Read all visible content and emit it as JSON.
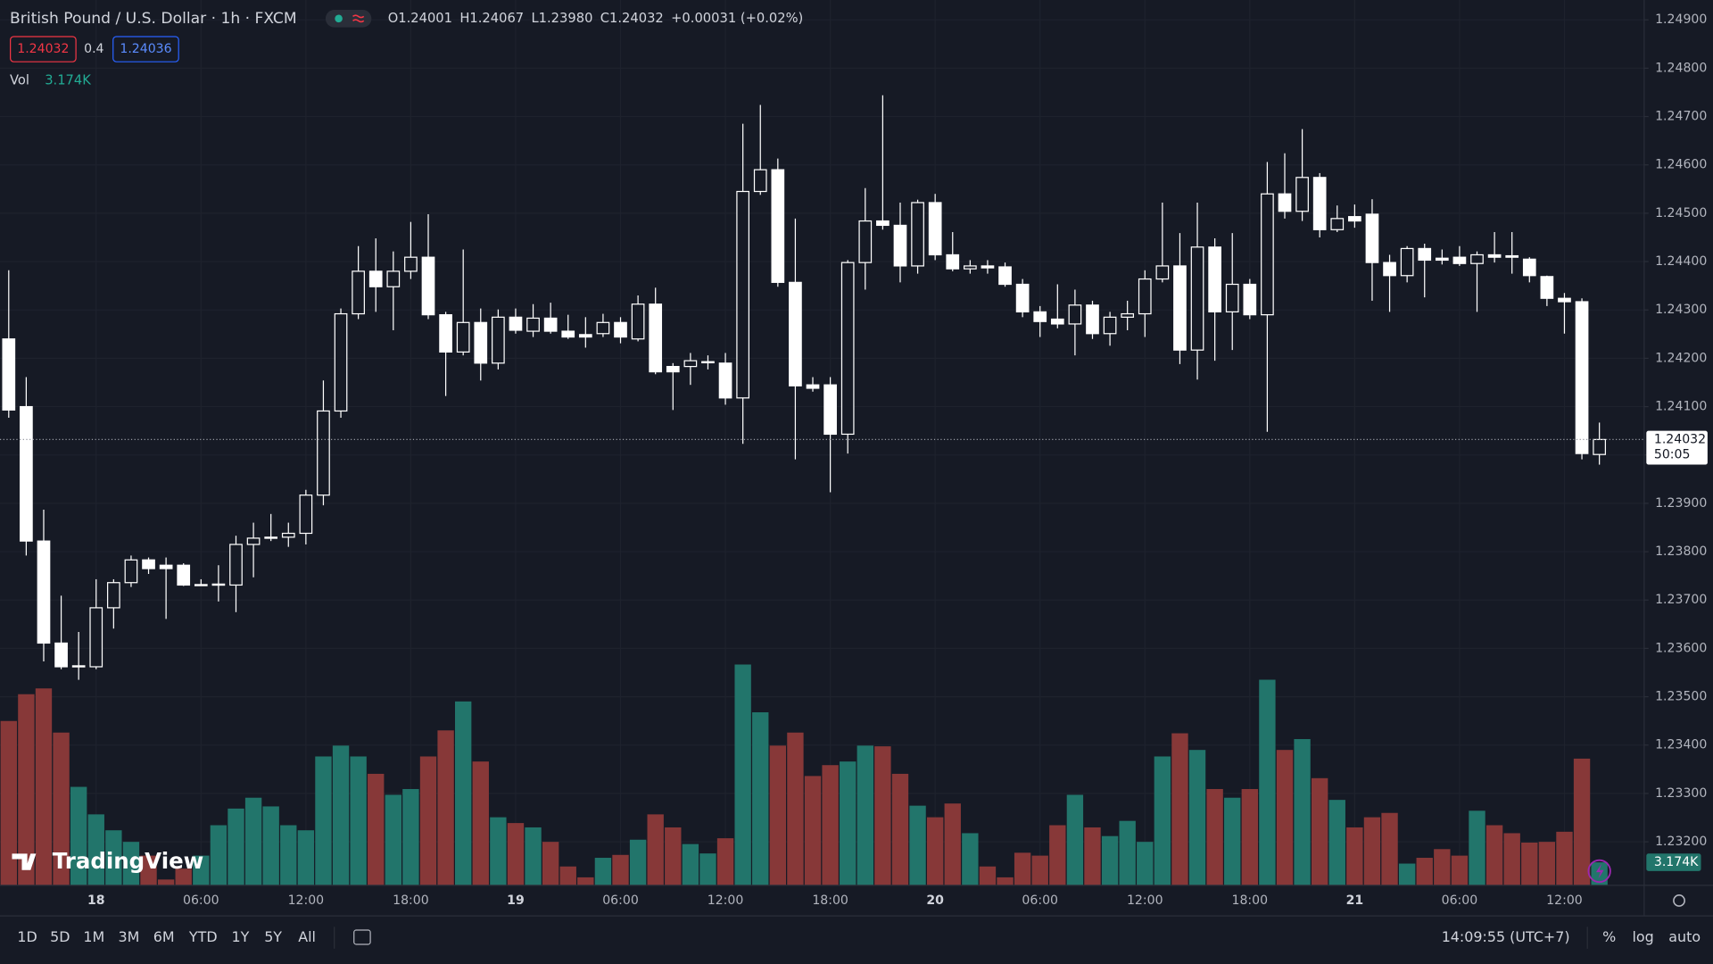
{
  "header": {
    "title": "British Pound / U.S. Dollar · 1h · FXCM",
    "ohlc": [
      {
        "key": "O",
        "value": "1.24001"
      },
      {
        "key": "H",
        "value": "1.24067"
      },
      {
        "key": "L",
        "value": "1.23980"
      },
      {
        "key": "C",
        "value": "1.24032"
      }
    ],
    "change": "+0.00031 (+0.02%)",
    "sell_price": "1.24032",
    "spread": "0.4",
    "buy_price": "1.24036",
    "volume_title": "Vol",
    "volume_value": "3.174K"
  },
  "chart_data": {
    "type": "candlestick",
    "categories": [
      null,
      null,
      null,
      null,
      null,
      "18",
      null,
      null,
      null,
      null,
      null,
      "06:00",
      null,
      null,
      null,
      null,
      null,
      "12:00",
      null,
      null,
      null,
      null,
      null,
      "18:00",
      null,
      null,
      null,
      null,
      null,
      "19",
      null,
      null,
      null,
      null,
      null,
      "06:00",
      null,
      null,
      null,
      null,
      null,
      "12:00",
      null,
      null,
      null,
      null,
      null,
      "18:00",
      null,
      null,
      null,
      null,
      null,
      "20",
      null,
      null,
      null,
      null,
      null,
      "06:00",
      null,
      null,
      null,
      null,
      null,
      "12:00",
      null,
      null,
      null,
      null,
      null,
      "18:00",
      null,
      null,
      null,
      null,
      null,
      "21",
      null,
      null,
      null,
      null,
      null,
      "06:00",
      null,
      null,
      null,
      null,
      null,
      "12:00",
      null,
      null
    ],
    "open": [
      1.2424,
      1.241,
      1.23822,
      1.23611,
      1.23562,
      1.23562,
      1.23684,
      1.23736,
      1.23783,
      1.23772,
      1.23772,
      1.23731,
      1.23731,
      1.23731,
      1.23815,
      1.23828,
      1.2383,
      1.23838,
      1.23917,
      1.24091,
      1.24292,
      1.2438,
      1.24348,
      1.2438,
      1.24409,
      1.2429,
      1.24213,
      1.24274,
      1.2419,
      1.24285,
      1.24256,
      1.24283,
      1.24256,
      1.24249,
      1.24251,
      1.24274,
      1.2424,
      1.24312,
      1.24183,
      1.24183,
      1.24192,
      1.2419,
      1.24118,
      1.24545,
      1.2459,
      1.24357,
      1.24145,
      1.24145,
      1.24043,
      1.24398,
      1.24484,
      1.24475,
      1.24391,
      1.24522,
      1.24414,
      1.24385,
      1.24391,
      1.24389,
      1.24353,
      1.24296,
      1.24281,
      1.24271,
      1.2431,
      1.24251,
      1.24285,
      1.24292,
      1.24364,
      1.24391,
      1.24217,
      1.2443,
      1.24296,
      1.24353,
      1.2429,
      1.2454,
      1.24504,
      1.24574,
      1.24466,
      1.24493,
      1.24498,
      1.24398,
      1.24371,
      1.24427,
      1.24407,
      1.24409,
      1.24396,
      1.24414,
      1.24412,
      1.24405,
      1.24369,
      1.24324,
      1.24317,
      1.24001
    ],
    "high": [
      1.24382,
      1.24161,
      1.23887,
      1.23709,
      1.23634,
      1.23743,
      1.23743,
      1.23792,
      1.23788,
      1.23788,
      1.23776,
      1.23743,
      1.23772,
      1.23833,
      1.2386,
      1.23878,
      1.2386,
      1.23928,
      1.24154,
      1.24303,
      1.24432,
      1.24448,
      1.24421,
      1.24482,
      1.24498,
      1.24296,
      1.24425,
      1.24303,
      1.24301,
      1.24303,
      1.24312,
      1.24315,
      1.2429,
      1.24285,
      1.24292,
      1.24285,
      1.2433,
      1.24346,
      1.2419,
      1.24211,
      1.24206,
      1.24211,
      1.24685,
      1.24724,
      1.24613,
      1.24489,
      1.24161,
      1.24161,
      1.24403,
      1.24552,
      1.24744,
      1.24522,
      1.24528,
      1.2454,
      1.24461,
      1.24403,
      1.24403,
      1.24398,
      1.24364,
      1.24308,
      1.24353,
      1.24342,
      1.24319,
      1.24296,
      1.24319,
      1.24382,
      1.24522,
      1.24459,
      1.24522,
      1.24448,
      1.24459,
      1.24364,
      1.24606,
      1.24624,
      1.24674,
      1.24583,
      1.24516,
      1.24518,
      1.24529,
      1.24414,
      1.24432,
      1.24437,
      1.24425,
      1.24432,
      1.24421,
      1.24461,
      1.24461,
      1.24409,
      1.24371,
      1.24335,
      1.24324,
      1.24067
    ],
    "low": [
      1.24077,
      1.23792,
      1.23573,
      1.23557,
      1.23535,
      1.23557,
      1.23641,
      1.23727,
      1.23754,
      1.23661,
      1.23729,
      1.23729,
      1.23697,
      1.23675,
      1.23747,
      1.23822,
      1.2381,
      1.23815,
      1.23896,
      1.24077,
      1.24281,
      1.24296,
      1.24258,
      1.24364,
      1.24281,
      1.24122,
      1.24206,
      1.24154,
      1.24177,
      1.24251,
      1.24244,
      1.24251,
      1.2424,
      1.24222,
      1.24244,
      1.24231,
      1.24235,
      1.24167,
      1.24093,
      1.24145,
      1.24177,
      1.24104,
      1.24023,
      1.24538,
      1.24348,
      1.23991,
      1.24131,
      1.23923,
      1.24003,
      1.24342,
      1.24466,
      1.24357,
      1.24375,
      1.24403,
      1.2438,
      1.24375,
      1.24375,
      1.24348,
      1.24285,
      1.24244,
      1.24262,
      1.24206,
      1.2424,
      1.24226,
      1.24258,
      1.24244,
      1.24357,
      1.24188,
      1.24156,
      1.24195,
      1.24217,
      1.24281,
      1.24048,
      1.24489,
      1.24484,
      1.2445,
      1.24461,
      1.2447,
      1.24319,
      1.24296,
      1.24357,
      1.24326,
      1.24394,
      1.24391,
      1.24296,
      1.24398,
      1.24375,
      1.24357,
      1.24308,
      1.24251,
      1.23991,
      1.2398
    ],
    "close": [
      1.24093,
      1.23822,
      1.23611,
      1.23562,
      1.23564,
      1.23684,
      1.23736,
      1.23783,
      1.23765,
      1.23765,
      1.23731,
      1.23732,
      1.23733,
      1.23815,
      1.23828,
      1.2383,
      1.23838,
      1.23917,
      1.24091,
      1.24292,
      1.2438,
      1.24348,
      1.2438,
      1.24409,
      1.2429,
      1.24213,
      1.24274,
      1.2419,
      1.24285,
      1.24258,
      1.24283,
      1.24256,
      1.24244,
      1.24244,
      1.24274,
      1.24244,
      1.24312,
      1.24172,
      1.24172,
      1.24195,
      1.24193,
      1.24118,
      1.24545,
      1.2459,
      1.24357,
      1.24143,
      1.24138,
      1.24043,
      1.24398,
      1.24484,
      1.24475,
      1.24391,
      1.24522,
      1.24414,
      1.24385,
      1.24391,
      1.24387,
      1.24353,
      1.24296,
      1.24276,
      1.24271,
      1.2431,
      1.24251,
      1.24285,
      1.24292,
      1.24364,
      1.24391,
      1.24217,
      1.2443,
      1.24296,
      1.24353,
      1.2429,
      1.2454,
      1.24504,
      1.24574,
      1.24466,
      1.24489,
      1.24484,
      1.24398,
      1.24371,
      1.24427,
      1.24403,
      1.24403,
      1.24396,
      1.24414,
      1.24409,
      1.24409,
      1.24371,
      1.24324,
      1.24317,
      1.24003,
      1.24032
    ],
    "volume": [
      22.7,
      26.4,
      27.2,
      21.1,
      13.6,
      9.8,
      7.6,
      6.0,
      4.1,
      0.8,
      2.3,
      4.1,
      8.3,
      10.6,
      12.1,
      10.9,
      8.3,
      7.6,
      17.8,
      19.3,
      17.8,
      15.4,
      12.5,
      13.3,
      17.8,
      21.4,
      25.4,
      17.1,
      9.4,
      8.6,
      8.0,
      6.0,
      2.6,
      1.1,
      3.8,
      4.2,
      6.3,
      9.8,
      8.0,
      5.7,
      4.4,
      6.5,
      30.5,
      23.9,
      19.3,
      21.1,
      15.1,
      16.6,
      17.1,
      19.3,
      19.2,
      15.4,
      11.0,
      9.4,
      11.3,
      7.2,
      2.6,
      1.1,
      4.5,
      4.1,
      8.3,
      12.5,
      8.0,
      6.8,
      8.9,
      6.0,
      17.8,
      21.0,
      18.7,
      13.3,
      12.1,
      13.3,
      28.4,
      18.7,
      20.2,
      14.8,
      11.8,
      8.0,
      9.4,
      10.0,
      3.0,
      3.8,
      5.0,
      4.1,
      10.3,
      8.3,
      7.2,
      5.9,
      6.0,
      7.4,
      17.5,
      3.174
    ],
    "ylim": [
      1.2311,
      1.24941
    ],
    "yticks": [
      {
        "value": 1.249,
        "label": "1.24900"
      },
      {
        "value": 1.248,
        "label": "1.24800"
      },
      {
        "value": 1.247,
        "label": "1.24700"
      },
      {
        "value": 1.246,
        "label": "1.24600"
      },
      {
        "value": 1.245,
        "label": "1.24500"
      },
      {
        "value": 1.244,
        "label": "1.24400"
      },
      {
        "value": 1.243,
        "label": "1.24300"
      },
      {
        "value": 1.242,
        "label": "1.24200"
      },
      {
        "value": 1.241,
        "label": "1.24100"
      },
      {
        "value": 1.24,
        "label": "1.24000"
      },
      {
        "value": 1.239,
        "label": "1.23900"
      },
      {
        "value": 1.238,
        "label": "1.23800"
      },
      {
        "value": 1.237,
        "label": "1.23700"
      },
      {
        "value": 1.236,
        "label": "1.23600"
      },
      {
        "value": 1.235,
        "label": "1.23500"
      },
      {
        "value": 1.234,
        "label": "1.23400"
      },
      {
        "value": 1.233,
        "label": "1.23300"
      },
      {
        "value": 1.232,
        "label": "1.23200"
      }
    ],
    "grid": true,
    "candle_color": "#ffffff",
    "volume_up_color": "#22756b",
    "volume_down_color": "#873838",
    "last_price_label": "1.24032",
    "countdown": "50:05",
    "volume_label": "3.174K"
  },
  "logo": "TradingView",
  "footer": {
    "ranges": [
      "1D",
      "5D",
      "1M",
      "3M",
      "6M",
      "YTD",
      "1Y",
      "5Y",
      "All"
    ],
    "clock": "14:09:55 (UTC+7)",
    "options": [
      "%",
      "log",
      "auto"
    ]
  }
}
